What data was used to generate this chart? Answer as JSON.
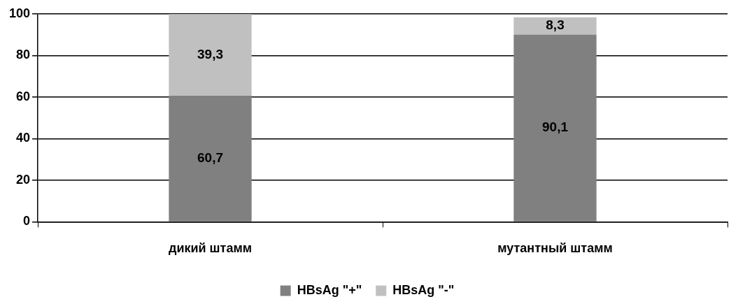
{
  "chart_data": {
    "type": "bar",
    "stacked": true,
    "categories": [
      "дикий штамм",
      "мутантный штамм"
    ],
    "series": [
      {
        "name": "HBsAg \"+\"",
        "color": "#808080",
        "values": [
          60.7,
          90.1
        ],
        "value_labels": [
          "60,7",
          "90,1"
        ]
      },
      {
        "name": "HBsAg \"-\"",
        "color": "#c0c0c0",
        "values": [
          39.3,
          8.3
        ],
        "value_labels": [
          "39,3",
          "8,3"
        ]
      }
    ],
    "ylim": [
      0,
      100
    ],
    "yticks": [
      0,
      20,
      40,
      60,
      80,
      100
    ],
    "grid": "y",
    "legend": "bottom"
  }
}
